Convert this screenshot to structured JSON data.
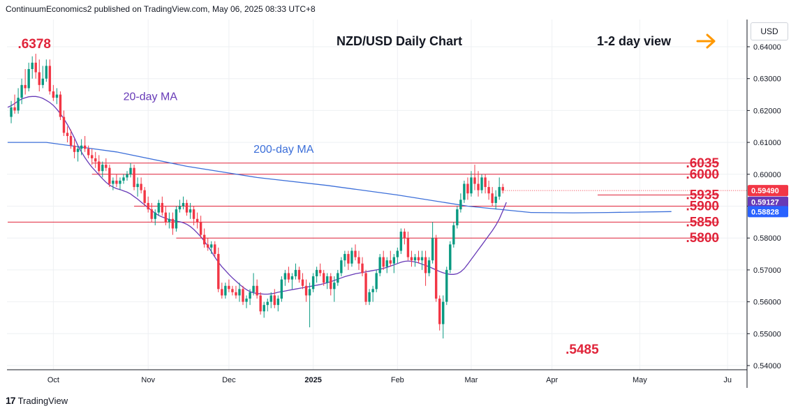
{
  "header": {
    "publisher_line": "ContinuumEconomics2 published on TradingView.com, May 06, 2025 08:33 UTC+8"
  },
  "currency_label": "USD",
  "footer": {
    "brand": "TradingView"
  },
  "chart_data": {
    "type": "candlestick",
    "title": "NZD/USD Daily Chart",
    "view_label": "1-2 day view",
    "view_icon": "arrow-right-icon",
    "ylim": [
      0.54,
      0.645
    ],
    "y_ticks": [
      "0.64000",
      "0.63000",
      "0.62000",
      "0.61000",
      "0.60000",
      "0.59000",
      "0.58000",
      "0.57000",
      "0.56000",
      "0.55000",
      "0.54000"
    ],
    "y_tick_values": [
      0.64,
      0.63,
      0.62,
      0.61,
      0.6,
      0.59,
      0.58,
      0.57,
      0.56,
      0.55,
      0.54
    ],
    "x_ticks": [
      "Oct",
      "Nov",
      "Dec",
      "2025",
      "Feb",
      "Mar",
      "Apr",
      "May",
      "Ju"
    ],
    "x_tick_index": [
      12,
      39,
      62,
      86,
      110,
      131,
      154,
      179,
      204
    ],
    "bars": [
      [
        0.618,
        0.623,
        0.616,
        0.621
      ],
      [
        0.621,
        0.625,
        0.619,
        0.62
      ],
      [
        0.62,
        0.627,
        0.619,
        0.624
      ],
      [
        0.624,
        0.63,
        0.622,
        0.628
      ],
      [
        0.628,
        0.633,
        0.625,
        0.627
      ],
      [
        0.627,
        0.635,
        0.626,
        0.633
      ],
      [
        0.633,
        0.637,
        0.63,
        0.635
      ],
      [
        0.635,
        0.6378,
        0.63,
        0.632
      ],
      [
        0.632,
        0.636,
        0.626,
        0.628
      ],
      [
        0.628,
        0.634,
        0.627,
        0.63
      ],
      [
        0.63,
        0.636,
        0.629,
        0.634
      ],
      [
        0.634,
        0.636,
        0.625,
        0.626
      ],
      [
        0.626,
        0.628,
        0.623,
        0.624
      ],
      [
        0.624,
        0.627,
        0.622,
        0.625
      ],
      [
        0.625,
        0.626,
        0.617,
        0.618
      ],
      [
        0.618,
        0.62,
        0.612,
        0.613
      ],
      [
        0.613,
        0.615,
        0.61,
        0.612
      ],
      [
        0.612,
        0.614,
        0.608,
        0.609
      ],
      [
        0.609,
        0.611,
        0.605,
        0.607
      ],
      [
        0.607,
        0.609,
        0.604,
        0.608
      ],
      [
        0.608,
        0.611,
        0.606,
        0.609
      ],
      [
        0.609,
        0.612,
        0.607,
        0.608
      ],
      [
        0.608,
        0.609,
        0.605,
        0.606
      ],
      [
        0.606,
        0.608,
        0.603,
        0.605
      ],
      [
        0.605,
        0.607,
        0.602,
        0.604
      ],
      [
        0.604,
        0.606,
        0.6,
        0.601
      ],
      [
        0.601,
        0.604,
        0.599,
        0.603
      ],
      [
        0.603,
        0.605,
        0.601,
        0.602
      ],
      [
        0.602,
        0.603,
        0.596,
        0.597
      ],
      [
        0.597,
        0.599,
        0.595,
        0.598
      ],
      [
        0.598,
        0.6,
        0.596,
        0.597
      ],
      [
        0.597,
        0.599,
        0.595,
        0.598
      ],
      [
        0.598,
        0.6,
        0.597,
        0.599
      ],
      [
        0.599,
        0.601,
        0.598,
        0.6
      ],
      [
        0.6,
        0.6035,
        0.599,
        0.602
      ],
      [
        0.602,
        0.603,
        0.595,
        0.596
      ],
      [
        0.596,
        0.599,
        0.593,
        0.597
      ],
      [
        0.597,
        0.599,
        0.594,
        0.595
      ],
      [
        0.595,
        0.596,
        0.59,
        0.591
      ],
      [
        0.591,
        0.593,
        0.588,
        0.589
      ],
      [
        0.589,
        0.591,
        0.585,
        0.586
      ],
      [
        0.586,
        0.589,
        0.584,
        0.588
      ],
      [
        0.588,
        0.592,
        0.587,
        0.591
      ],
      [
        0.591,
        0.593,
        0.587,
        0.588
      ],
      [
        0.588,
        0.59,
        0.584,
        0.585
      ],
      [
        0.585,
        0.588,
        0.583,
        0.586
      ],
      [
        0.586,
        0.588,
        0.581,
        0.583
      ],
      [
        0.583,
        0.59,
        0.582,
        0.589
      ],
      [
        0.589,
        0.592,
        0.588,
        0.59
      ],
      [
        0.59,
        0.593,
        0.589,
        0.591
      ],
      [
        0.591,
        0.592,
        0.587,
        0.588
      ],
      [
        0.588,
        0.591,
        0.586,
        0.589
      ],
      [
        0.589,
        0.59,
        0.584,
        0.586
      ],
      [
        0.586,
        0.588,
        0.583,
        0.585
      ],
      [
        0.585,
        0.587,
        0.58,
        0.581
      ],
      [
        0.581,
        0.583,
        0.577,
        0.578
      ],
      [
        0.578,
        0.58,
        0.576,
        0.577
      ],
      [
        0.577,
        0.579,
        0.575,
        0.578
      ],
      [
        0.578,
        0.579,
        0.574,
        0.575
      ],
      [
        0.575,
        0.577,
        0.563,
        0.564
      ],
      [
        0.564,
        0.566,
        0.561,
        0.562
      ],
      [
        0.562,
        0.566,
        0.561,
        0.565
      ],
      [
        0.565,
        0.567,
        0.563,
        0.564
      ],
      [
        0.564,
        0.565,
        0.562,
        0.563
      ],
      [
        0.563,
        0.565,
        0.561,
        0.562
      ],
      [
        0.562,
        0.566,
        0.56,
        0.564
      ],
      [
        0.564,
        0.565,
        0.559,
        0.56
      ],
      [
        0.56,
        0.562,
        0.558,
        0.561
      ],
      [
        0.561,
        0.564,
        0.559,
        0.563
      ],
      [
        0.563,
        0.569,
        0.562,
        0.565
      ],
      [
        0.565,
        0.567,
        0.561,
        0.562
      ],
      [
        0.562,
        0.563,
        0.556,
        0.557
      ],
      [
        0.557,
        0.56,
        0.555,
        0.559
      ],
      [
        0.559,
        0.561,
        0.557,
        0.56
      ],
      [
        0.56,
        0.563,
        0.558,
        0.562
      ],
      [
        0.562,
        0.564,
        0.558,
        0.559
      ],
      [
        0.559,
        0.562,
        0.557,
        0.561
      ],
      [
        0.561,
        0.568,
        0.56,
        0.567
      ],
      [
        0.567,
        0.57,
        0.565,
        0.569
      ],
      [
        0.569,
        0.571,
        0.566,
        0.567
      ],
      [
        0.567,
        0.569,
        0.564,
        0.568
      ],
      [
        0.568,
        0.572,
        0.567,
        0.57
      ],
      [
        0.57,
        0.571,
        0.566,
        0.567
      ],
      [
        0.567,
        0.569,
        0.564,
        0.565
      ],
      [
        0.565,
        0.567,
        0.56,
        0.562
      ],
      [
        0.562,
        0.566,
        0.552,
        0.564
      ],
      [
        0.564,
        0.569,
        0.563,
        0.568
      ],
      [
        0.568,
        0.571,
        0.566,
        0.57
      ],
      [
        0.57,
        0.572,
        0.568,
        0.569
      ],
      [
        0.569,
        0.57,
        0.565,
        0.566
      ],
      [
        0.566,
        0.569,
        0.564,
        0.568
      ],
      [
        0.568,
        0.569,
        0.562,
        0.564
      ],
      [
        0.564,
        0.568,
        0.56,
        0.566
      ],
      [
        0.566,
        0.57,
        0.565,
        0.569
      ],
      [
        0.569,
        0.574,
        0.568,
        0.573
      ],
      [
        0.573,
        0.576,
        0.571,
        0.575
      ],
      [
        0.575,
        0.576,
        0.57,
        0.572
      ],
      [
        0.572,
        0.577,
        0.571,
        0.576
      ],
      [
        0.576,
        0.578,
        0.573,
        0.574
      ],
      [
        0.574,
        0.576,
        0.57,
        0.572
      ],
      [
        0.572,
        0.574,
        0.568,
        0.569
      ],
      [
        0.569,
        0.57,
        0.559,
        0.56
      ],
      [
        0.56,
        0.564,
        0.559,
        0.563
      ],
      [
        0.563,
        0.565,
        0.56,
        0.564
      ],
      [
        0.564,
        0.57,
        0.563,
        0.569
      ],
      [
        0.569,
        0.575,
        0.568,
        0.574
      ],
      [
        0.574,
        0.576,
        0.57,
        0.571
      ],
      [
        0.571,
        0.574,
        0.569,
        0.573
      ],
      [
        0.573,
        0.576,
        0.571,
        0.572
      ],
      [
        0.572,
        0.575,
        0.569,
        0.574
      ],
      [
        0.574,
        0.577,
        0.572,
        0.576
      ],
      [
        0.576,
        0.583,
        0.575,
        0.582
      ],
      [
        0.582,
        0.583,
        0.578,
        0.58
      ],
      [
        0.58,
        0.582,
        0.573,
        0.574
      ],
      [
        0.574,
        0.576,
        0.571,
        0.573
      ],
      [
        0.573,
        0.575,
        0.571,
        0.574
      ],
      [
        0.574,
        0.576,
        0.572,
        0.573
      ],
      [
        0.573,
        0.576,
        0.57,
        0.574
      ],
      [
        0.574,
        0.576,
        0.565,
        0.569
      ],
      [
        0.569,
        0.574,
        0.568,
        0.573
      ],
      [
        0.573,
        0.585,
        0.572,
        0.58
      ],
      [
        0.58,
        0.581,
        0.56,
        0.561
      ],
      [
        0.561,
        0.562,
        0.551,
        0.553
      ],
      [
        0.553,
        0.562,
        0.5485,
        0.56
      ],
      [
        0.56,
        0.571,
        0.559,
        0.57
      ],
      [
        0.57,
        0.579,
        0.569,
        0.578
      ],
      [
        0.578,
        0.585,
        0.577,
        0.584
      ],
      [
        0.584,
        0.59,
        0.583,
        0.589
      ],
      [
        0.589,
        0.594,
        0.588,
        0.592
      ],
      [
        0.592,
        0.598,
        0.591,
        0.597
      ],
      [
        0.597,
        0.599,
        0.592,
        0.594
      ],
      [
        0.594,
        0.601,
        0.593,
        0.599
      ],
      [
        0.599,
        0.603,
        0.595,
        0.597
      ],
      [
        0.597,
        0.601,
        0.593,
        0.595
      ],
      [
        0.595,
        0.6,
        0.594,
        0.599
      ],
      [
        0.599,
        0.6,
        0.594,
        0.596
      ],
      [
        0.596,
        0.598,
        0.592,
        0.594
      ],
      [
        0.594,
        0.596,
        0.59,
        0.591
      ],
      [
        0.591,
        0.595,
        0.589,
        0.593
      ],
      [
        0.593,
        0.599,
        0.592,
        0.596
      ],
      [
        0.596,
        0.597,
        0.594,
        0.5949
      ]
    ],
    "x_of_first_bar_index": -1,
    "ma20": {
      "name": "20-day MA",
      "color": "#673ab7",
      "label_anchor_index": 20,
      "label_anchor_value": 0.618,
      "values": [
        0.621,
        0.6215,
        0.6222,
        0.623,
        0.6236,
        0.624,
        0.6243,
        0.6244,
        0.6244,
        0.6242,
        0.6238,
        0.6232,
        0.6225,
        0.6216,
        0.6204,
        0.619,
        0.6174,
        0.6156,
        0.6136,
        0.6114,
        0.609,
        0.607,
        0.6052,
        0.6036,
        0.6022,
        0.601,
        0.5998,
        0.5986,
        0.5975,
        0.5966,
        0.596,
        0.5955,
        0.5952,
        0.5948,
        0.5944,
        0.5938,
        0.593,
        0.5922,
        0.5913,
        0.5904,
        0.5895,
        0.5886,
        0.5878,
        0.5871,
        0.5866,
        0.5862,
        0.5858,
        0.5855,
        0.5853,
        0.5851,
        0.5848,
        0.5843,
        0.5836,
        0.5827,
        0.5816,
        0.5804,
        0.579,
        0.5775,
        0.5758,
        0.574,
        0.5724,
        0.571,
        0.5698,
        0.5686,
        0.5675,
        0.5665,
        0.5655,
        0.5646,
        0.5638,
        0.5632,
        0.5628,
        0.5626,
        0.5625,
        0.5624,
        0.5624,
        0.5625,
        0.5627,
        0.563,
        0.5632,
        0.5634,
        0.5636,
        0.5638,
        0.564,
        0.5642,
        0.5644,
        0.5646,
        0.5648,
        0.565,
        0.5652,
        0.5654,
        0.5657,
        0.566,
        0.5663,
        0.5667,
        0.5671,
        0.5675,
        0.5679,
        0.5682,
        0.5685,
        0.5688,
        0.569,
        0.5692,
        0.5694,
        0.5696,
        0.5698,
        0.57,
        0.5702,
        0.5705,
        0.5708,
        0.5712,
        0.5716,
        0.572,
        0.5724,
        0.5727,
        0.5728,
        0.5727,
        0.5725,
        0.5722,
        0.5718,
        0.5714,
        0.571,
        0.5705,
        0.57,
        0.5695,
        0.5691,
        0.5688,
        0.5686,
        0.5686,
        0.5688,
        0.5694,
        0.5704,
        0.5718,
        0.5733,
        0.5748,
        0.5763,
        0.5778,
        0.5793,
        0.5808,
        0.5823,
        0.584,
        0.586,
        0.5885,
        0.5912
      ]
    },
    "ma200": {
      "name": "200-day MA",
      "color": "#3c6fd9",
      "label_anchor_index": 69,
      "label_anchor_value": 0.6096,
      "start": 0.61,
      "mid_index": 4,
      "mid_value": 0.6102,
      "knots": [
        [
          -1,
          0.61
        ],
        [
          10,
          0.61
        ],
        [
          30,
          0.607
        ],
        [
          50,
          0.6025
        ],
        [
          70,
          0.599
        ],
        [
          90,
          0.5965
        ],
        [
          110,
          0.5935
        ],
        [
          130,
          0.59
        ],
        [
          148,
          0.588
        ],
        [
          160,
          0.5879
        ],
        [
          170,
          0.588
        ],
        [
          188,
          0.5883
        ]
      ]
    },
    "hlines": [
      {
        "label": ".6035",
        "value": 0.6035,
        "from_index": 23
      },
      {
        "label": ".6000",
        "value": 0.6,
        "from_index": 23
      },
      {
        "label": ".5935",
        "value": 0.5935,
        "from_index": 167
      },
      {
        "label": ".5900",
        "value": 0.59,
        "from_index": 35
      },
      {
        "label": ".5850",
        "value": 0.585,
        "from_index": -1
      },
      {
        "label": ".5800",
        "value": 0.58,
        "from_index": 47
      }
    ],
    "annotations": [
      {
        "label": ".6378",
        "value": 0.6378,
        "at_index": 7,
        "position": "above"
      },
      {
        "label": ".5485",
        "value": 0.5485,
        "at_index": 163,
        "position": "below"
      }
    ],
    "price_tags": [
      {
        "label": "0.59490",
        "value": 0.5949,
        "color": "#f23645"
      },
      {
        "label": "0.59127",
        "value": 0.59127,
        "color": "#673ab7"
      },
      {
        "label": "0.58828",
        "value": 0.58828,
        "color": "#2962ff"
      }
    ],
    "colors": {
      "up": "#089981",
      "down": "#f23645",
      "level": "#e0243a",
      "axis": "#131722",
      "grid": "#eef0f3",
      "arrow": "#ff9800"
    }
  }
}
